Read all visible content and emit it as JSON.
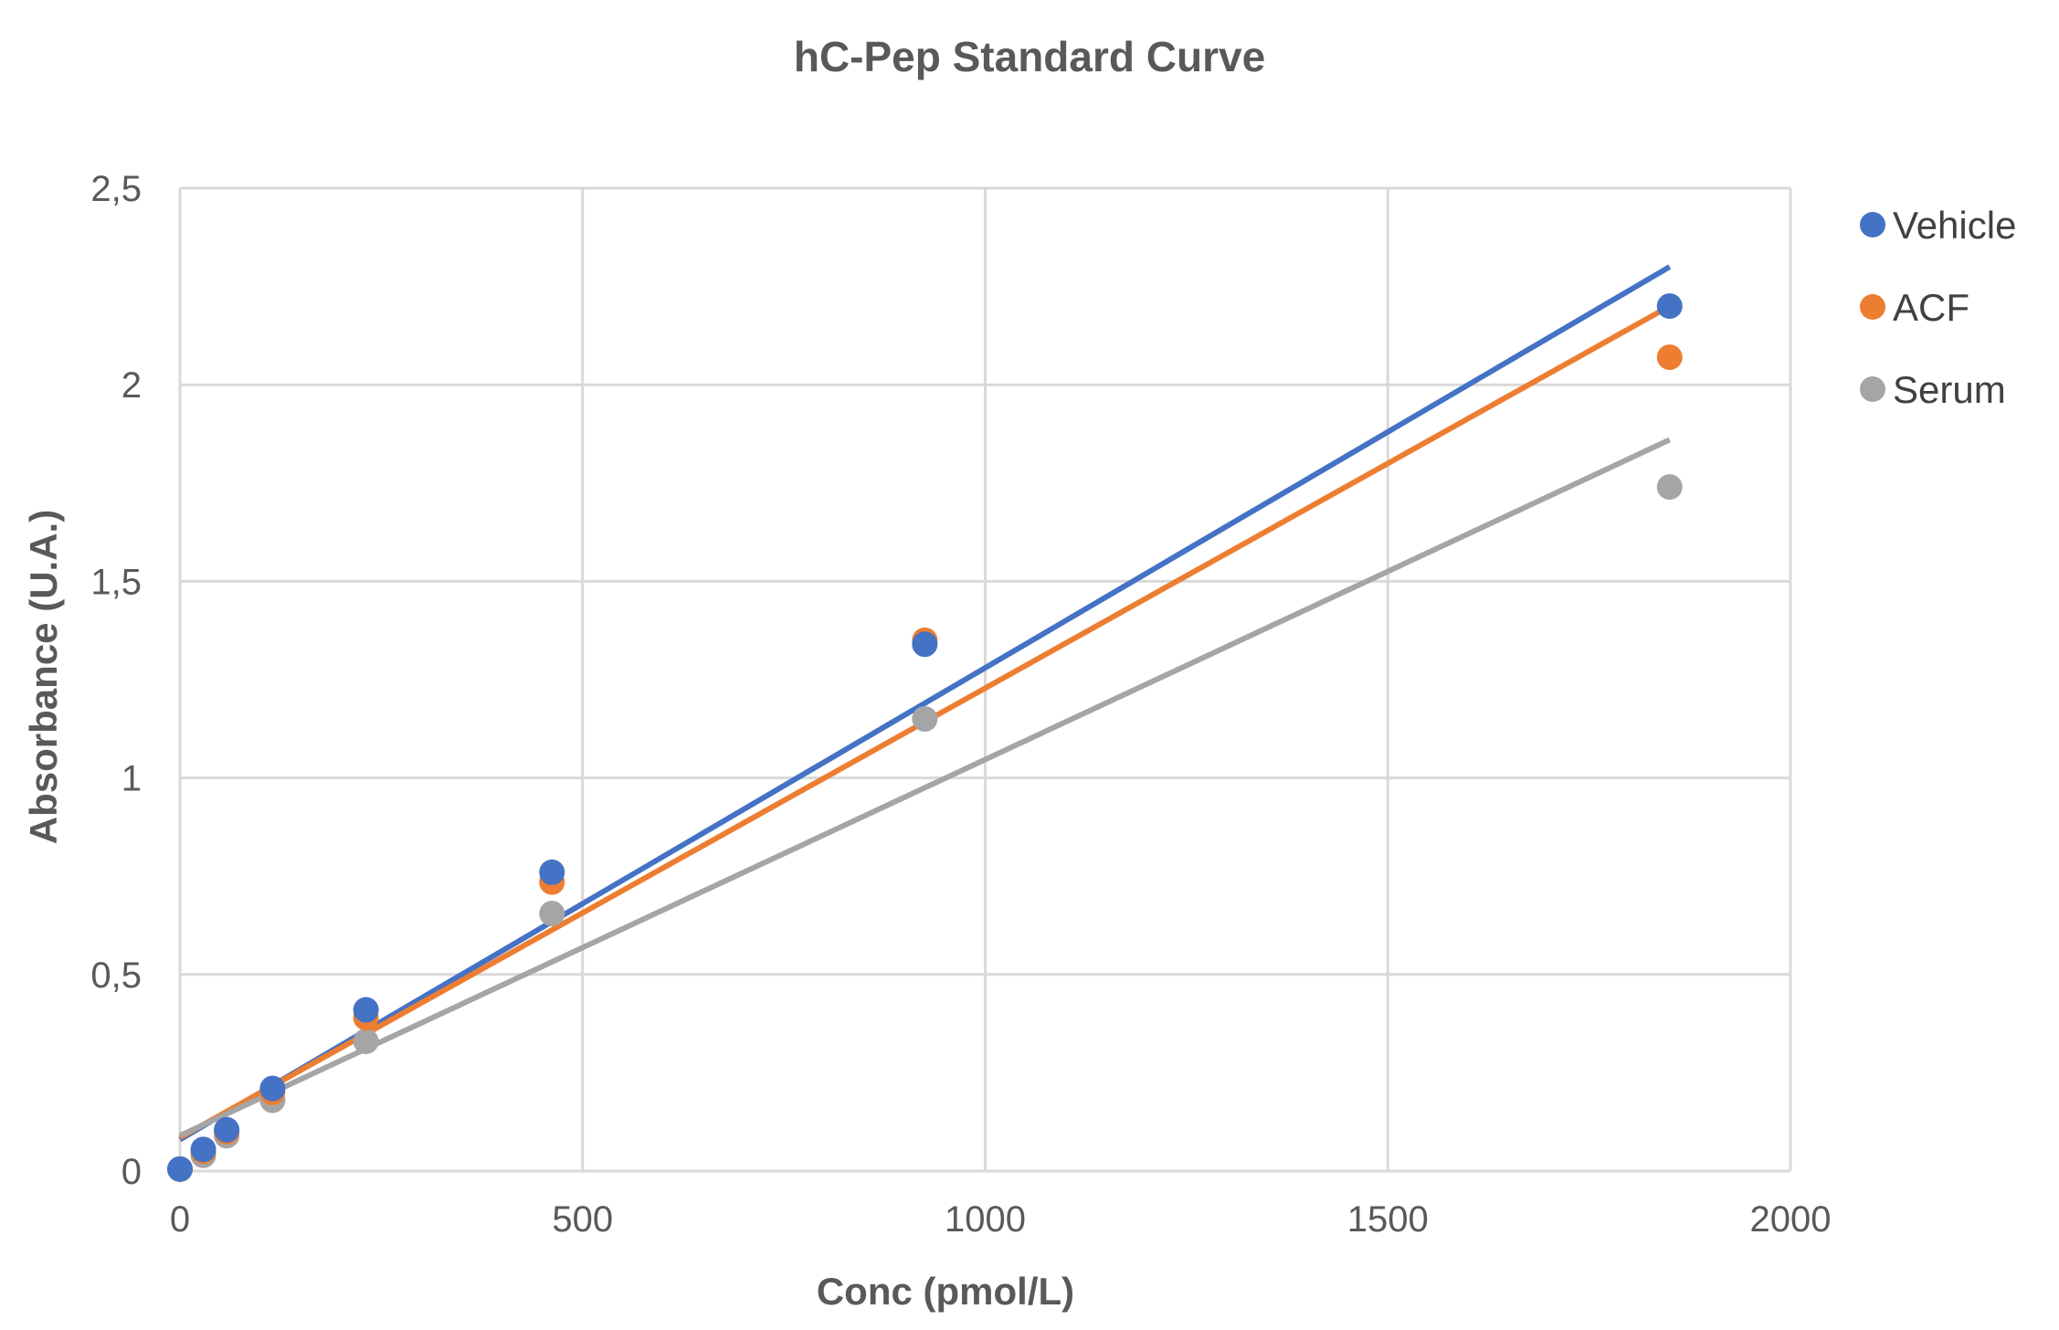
{
  "chart_data": {
    "type": "scatter",
    "title": "hC-Pep Standard Curve",
    "xlabel": "Conc (pmol/L)",
    "ylabel": "Absorbance (U.A.)",
    "xlim": [
      0,
      2000
    ],
    "ylim": [
      0,
      2.5
    ],
    "x_ticks": [
      0,
      500,
      1000,
      1500,
      2000
    ],
    "y_ticks": [
      0,
      0.5,
      1,
      1.5,
      2,
      2.5
    ],
    "x_tick_labels": [
      "0",
      "500",
      "1000",
      "1500",
      "2000"
    ],
    "y_tick_labels": [
      "0",
      "0,5",
      "1",
      "1,5",
      "2",
      "2,5"
    ],
    "grid": true,
    "legend_position": "right",
    "series": [
      {
        "name": "Vehicle",
        "color": "#4472C4",
        "x": [
          0,
          29,
          58,
          115,
          231,
          462,
          925,
          1850
        ],
        "y": [
          0.005,
          0.055,
          0.105,
          0.21,
          0.41,
          0.76,
          1.34,
          2.2
        ],
        "trendline": {
          "x": [
            0,
            1850
          ],
          "y": [
            0.08,
            2.3
          ]
        }
      },
      {
        "name": "ACF",
        "color": "#ED7D31",
        "x": [
          0,
          29,
          58,
          115,
          231,
          462,
          925,
          1850
        ],
        "y": [
          0.005,
          0.05,
          0.1,
          0.2,
          0.39,
          0.735,
          1.35,
          2.07
        ],
        "trendline": {
          "x": [
            0,
            1850
          ],
          "y": [
            0.085,
            2.2
          ]
        }
      },
      {
        "name": "Serum",
        "color": "#A5A5A5",
        "x": [
          0,
          29,
          58,
          115,
          231,
          462,
          925,
          1850
        ],
        "y": [
          0.005,
          0.04,
          0.09,
          0.18,
          0.33,
          0.655,
          1.15,
          1.74
        ],
        "trendline": {
          "x": [
            0,
            1850
          ],
          "y": [
            0.09,
            1.86
          ]
        }
      }
    ]
  }
}
